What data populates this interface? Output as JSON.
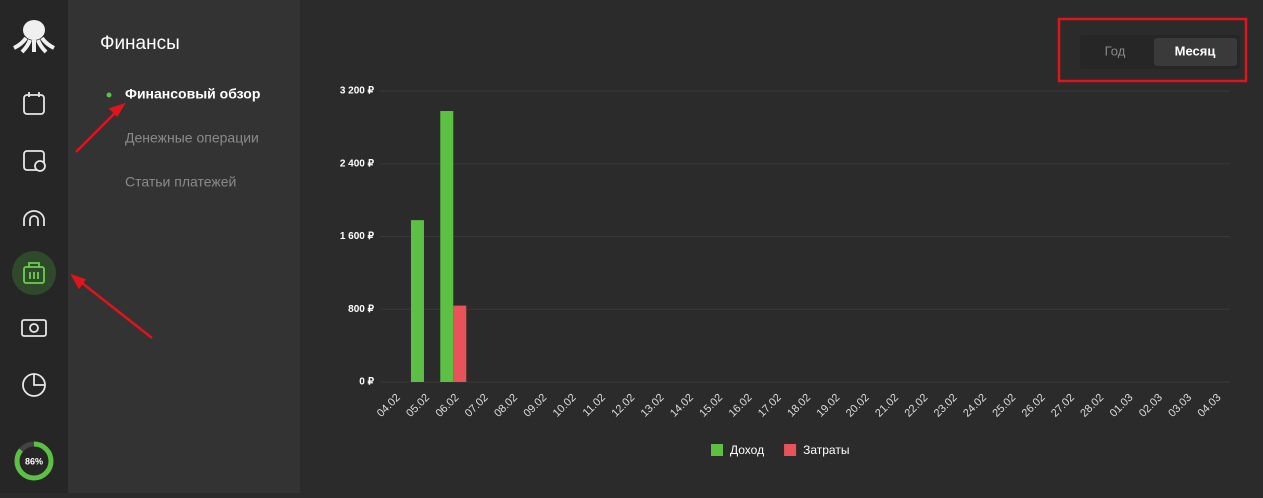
{
  "sidebar": {
    "progress": {
      "value": 86,
      "label": "86%"
    }
  },
  "menu": {
    "title": "Финансы",
    "items": [
      "Финансовый обзор",
      "Денежные операции",
      "Статьи платежей"
    ]
  },
  "period_toggle": {
    "options": [
      "Год",
      "Месяц"
    ]
  },
  "chart_data": {
    "type": "bar",
    "categories": [
      "04.02",
      "05.02",
      "06.02",
      "07.02",
      "08.02",
      "09.02",
      "10.02",
      "11.02",
      "12.02",
      "13.02",
      "14.02",
      "15.02",
      "16.02",
      "17.02",
      "18.02",
      "19.02",
      "20.02",
      "21.02",
      "22.02",
      "23.02",
      "24.02",
      "25.02",
      "26.02",
      "27.02",
      "28.02",
      "01.03",
      "02.03",
      "03.03",
      "04.03"
    ],
    "series": [
      {
        "name": "Доход",
        "color": "#5cc044",
        "values": [
          0,
          1780,
          2980,
          0,
          0,
          0,
          0,
          0,
          0,
          0,
          0,
          0,
          0,
          0,
          0,
          0,
          0,
          0,
          0,
          0,
          0,
          0,
          0,
          0,
          0,
          0,
          0,
          0,
          0
        ]
      },
      {
        "name": "Затраты",
        "color": "#e8535a",
        "values": [
          0,
          0,
          840,
          0,
          0,
          0,
          0,
          0,
          0,
          0,
          0,
          0,
          0,
          0,
          0,
          0,
          0,
          0,
          0,
          0,
          0,
          0,
          0,
          0,
          0,
          0,
          0,
          0,
          0
        ]
      }
    ],
    "ylim": [
      0,
      3200
    ],
    "yticks": [
      {
        "value": 0,
        "label": "0 ₽"
      },
      {
        "value": 800,
        "label": "800 ₽"
      },
      {
        "value": 1600,
        "label": "1 600 ₽"
      },
      {
        "value": 2400,
        "label": "2 400 ₽"
      },
      {
        "value": 3200,
        "label": "3 200 ₽"
      }
    ],
    "grid": true
  }
}
